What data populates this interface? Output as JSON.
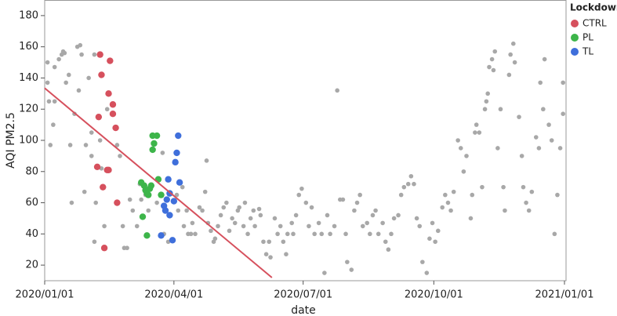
{
  "chart_data": {
    "type": "scatter",
    "xlabel": "date",
    "ylabel": "AQI PM2.5",
    "legend_title": "Lockdown",
    "legend": "right",
    "grid": false,
    "xlim": [
      "2020/01/01",
      "2021/01/01"
    ],
    "xticks": [
      "2020/01/01",
      "2020/04/01",
      "2020/07/01",
      "2020/10/01",
      "2021/01/01"
    ],
    "ylim": [
      10,
      190
    ],
    "yticks": [
      20,
      40,
      60,
      80,
      100,
      120,
      140,
      160,
      180
    ],
    "series": [
      {
        "color": "#a8a8a8",
        "x": [
          "2020/01/03",
          "2020/01/03",
          "2020/01/04",
          "2020/01/05",
          "2020/01/07",
          "2020/01/08",
          "2020/01/08",
          "2020/01/11",
          "2020/01/13",
          "2020/01/14",
          "2020/01/15",
          "2020/01/16",
          "2020/01/18",
          "2020/01/19",
          "2020/01/20",
          "2020/01/22",
          "2020/01/24",
          "2020/01/25",
          "2020/01/26",
          "2020/01/27",
          "2020/01/29",
          "2020/01/30",
          "2020/02/01",
          "2020/02/03",
          "2020/02/03",
          "2020/02/05",
          "2020/02/05",
          "2020/02/06",
          "2020/02/09",
          "2020/02/10",
          "2020/02/12",
          "2020/02/14",
          "2020/02/21",
          "2020/02/23",
          "2020/02/25",
          "2020/02/26",
          "2020/02/28",
          "2020/03/01",
          "2020/03/03",
          "2020/03/06",
          "2020/03/08",
          "2020/03/09",
          "2020/03/12",
          "2020/03/14",
          "2020/03/20",
          "2020/03/23",
          "2020/03/24",
          "2020/03/25",
          "2020/03/28",
          "2020/04/03",
          "2020/04/04",
          "2020/04/07",
          "2020/04/08",
          "2020/04/10",
          "2020/04/11",
          "2020/04/13",
          "2020/04/14",
          "2020/04/16",
          "2020/04/19",
          "2020/04/21",
          "2020/04/23",
          "2020/04/24",
          "2020/04/25",
          "2020/04/27",
          "2020/04/29",
          "2020/04/30",
          "2020/05/02",
          "2020/05/04",
          "2020/05/06",
          "2020/05/08",
          "2020/05/10",
          "2020/05/12",
          "2020/05/14",
          "2020/05/16",
          "2020/05/17",
          "2020/05/20",
          "2020/05/21",
          "2020/05/23",
          "2020/05/25",
          "2020/05/27",
          "2020/05/28",
          "2020/05/31",
          "2020/06/01",
          "2020/06/03",
          "2020/06/05",
          "2020/06/07",
          "2020/06/08",
          "2020/06/11",
          "2020/06/13",
          "2020/06/15",
          "2020/06/17",
          "2020/06/19",
          "2020/06/20",
          "2020/06/23",
          "2020/06/24",
          "2020/06/26",
          "2020/06/28",
          "2020/06/30",
          "2020/07/03",
          "2020/07/05",
          "2020/07/07",
          "2020/07/09",
          "2020/07/12",
          "2020/07/14",
          "2020/07/16",
          "2020/07/18",
          "2020/07/20",
          "2020/07/23",
          "2020/07/25",
          "2020/07/27",
          "2020/07/29",
          "2020/07/31",
          "2020/08/01",
          "2020/08/04",
          "2020/08/06",
          "2020/08/08",
          "2020/08/10",
          "2020/08/12",
          "2020/08/15",
          "2020/08/17",
          "2020/08/19",
          "2020/08/21",
          "2020/08/23",
          "2020/08/26",
          "2020/08/28",
          "2020/08/30",
          "2020/09/01",
          "2020/09/03",
          "2020/09/06",
          "2020/09/08",
          "2020/09/10",
          "2020/09/13",
          "2020/09/15",
          "2020/09/17",
          "2020/09/19",
          "2020/09/21",
          "2020/09/23",
          "2020/09/26",
          "2020/09/28",
          "2020/09/30",
          "2020/10/02",
          "2020/10/04",
          "2020/10/07",
          "2020/10/09",
          "2020/10/11",
          "2020/10/13",
          "2020/10/15",
          "2020/10/18",
          "2020/10/20",
          "2020/10/22",
          "2020/10/24",
          "2020/10/27",
          "2020/10/28",
          "2020/10/30",
          "2020/10/31",
          "2020/11/02",
          "2020/11/04",
          "2020/11/06",
          "2020/11/07",
          "2020/11/08",
          "2020/11/09",
          "2020/11/11",
          "2020/11/12",
          "2020/11/13",
          "2020/11/15",
          "2020/11/17",
          "2020/11/19",
          "2020/11/20",
          "2020/11/23",
          "2020/11/24",
          "2020/11/26",
          "2020/11/27",
          "2020/11/30",
          "2020/12/02",
          "2020/12/03",
          "2020/12/05",
          "2020/12/07",
          "2020/12/09",
          "2020/12/12",
          "2020/12/14",
          "2020/12/15",
          "2020/12/17",
          "2020/12/18",
          "2020/12/21",
          "2020/12/23",
          "2020/12/25",
          "2020/12/27",
          "2020/12/29",
          "2020/12/31",
          "2020/12/31"
        ],
        "values": [
          150,
          137,
          125,
          97,
          110,
          125,
          147,
          152,
          155,
          157,
          156,
          137,
          142,
          97,
          60,
          117,
          160,
          132,
          161,
          155,
          67,
          97,
          140,
          105,
          90,
          35,
          155,
          60,
          100,
          82,
          45,
          120,
          97,
          90,
          45,
          31,
          31,
          62,
          55,
          45,
          72,
          62,
          65,
          55,
          60,
          65,
          92,
          40,
          35,
          65,
          55,
          70,
          45,
          55,
          40,
          40,
          47,
          40,
          57,
          55,
          67,
          87,
          47,
          42,
          35,
          37,
          45,
          52,
          57,
          60,
          42,
          50,
          47,
          55,
          57,
          45,
          60,
          40,
          50,
          55,
          45,
          56,
          52,
          35,
          27,
          35,
          25,
          50,
          40,
          45,
          35,
          27,
          40,
          47,
          40,
          52,
          65,
          69,
          60,
          45,
          57,
          40,
          47,
          40,
          15,
          52,
          40,
          45,
          132,
          62,
          62,
          40,
          22,
          17,
          55,
          60,
          65,
          45,
          47,
          40,
          52,
          55,
          40,
          47,
          35,
          30,
          40,
          50,
          52,
          65,
          70,
          72,
          77,
          72,
          50,
          45,
          22,
          15,
          37,
          47,
          35,
          42,
          57,
          65,
          60,
          55,
          67,
          100,
          95,
          80,
          90,
          50,
          65,
          105,
          110,
          105,
          70,
          120,
          125,
          130,
          147,
          152,
          145,
          157,
          95,
          120,
          70,
          55,
          142,
          155,
          162,
          150,
          115,
          90,
          70,
          60,
          55,
          67,
          102,
          95,
          137,
          120,
          152,
          110,
          100,
          40,
          65,
          95,
          117,
          137
        ]
      },
      {
        "name": "CTRL",
        "color": "#d6505d",
        "x": [
          "2020/02/09",
          "2020/02/10",
          "2020/02/16",
          "2020/02/15",
          "2020/02/18",
          "2020/02/18",
          "2020/02/20",
          "2020/02/08",
          "2020/02/07",
          "2020/02/14",
          "2020/02/15",
          "2020/02/11",
          "2020/02/21",
          "2020/02/12"
        ],
        "values": [
          155,
          142,
          151,
          130,
          123,
          117,
          108,
          115,
          83,
          81,
          81,
          70,
          60,
          31
        ]
      },
      {
        "name": "PL",
        "color": "#3db54a",
        "x": [
          "2020/03/17",
          "2020/03/20",
          "2020/03/18",
          "2020/03/17",
          "2020/03/09",
          "2020/03/11",
          "2020/03/12",
          "2020/03/13",
          "2020/03/15",
          "2020/03/16",
          "2020/03/14",
          "2020/03/21",
          "2020/03/23",
          "2020/03/10",
          "2020/03/13"
        ],
        "values": [
          103,
          103,
          98,
          94,
          73,
          71,
          68,
          66,
          69,
          71,
          65,
          75,
          65,
          51,
          39
        ]
      },
      {
        "name": "TL",
        "color": "#3f6fdb",
        "x": [
          "2020/04/04",
          "2020/04/03",
          "2020/04/02",
          "2020/04/05",
          "2020/03/28",
          "2020/03/29",
          "2020/03/27",
          "2020/04/01",
          "2020/03/25",
          "2020/03/26",
          "2020/03/29",
          "2020/03/23",
          "2020/03/31"
        ],
        "values": [
          103,
          92,
          86,
          73,
          75,
          66,
          62,
          61,
          58,
          55,
          52,
          39,
          36
        ]
      }
    ],
    "trend": {
      "color": "#d6505d",
      "x": [
        "2020/01/01",
        "2020/06/09"
      ],
      "values": [
        133.5,
        12
      ]
    }
  }
}
